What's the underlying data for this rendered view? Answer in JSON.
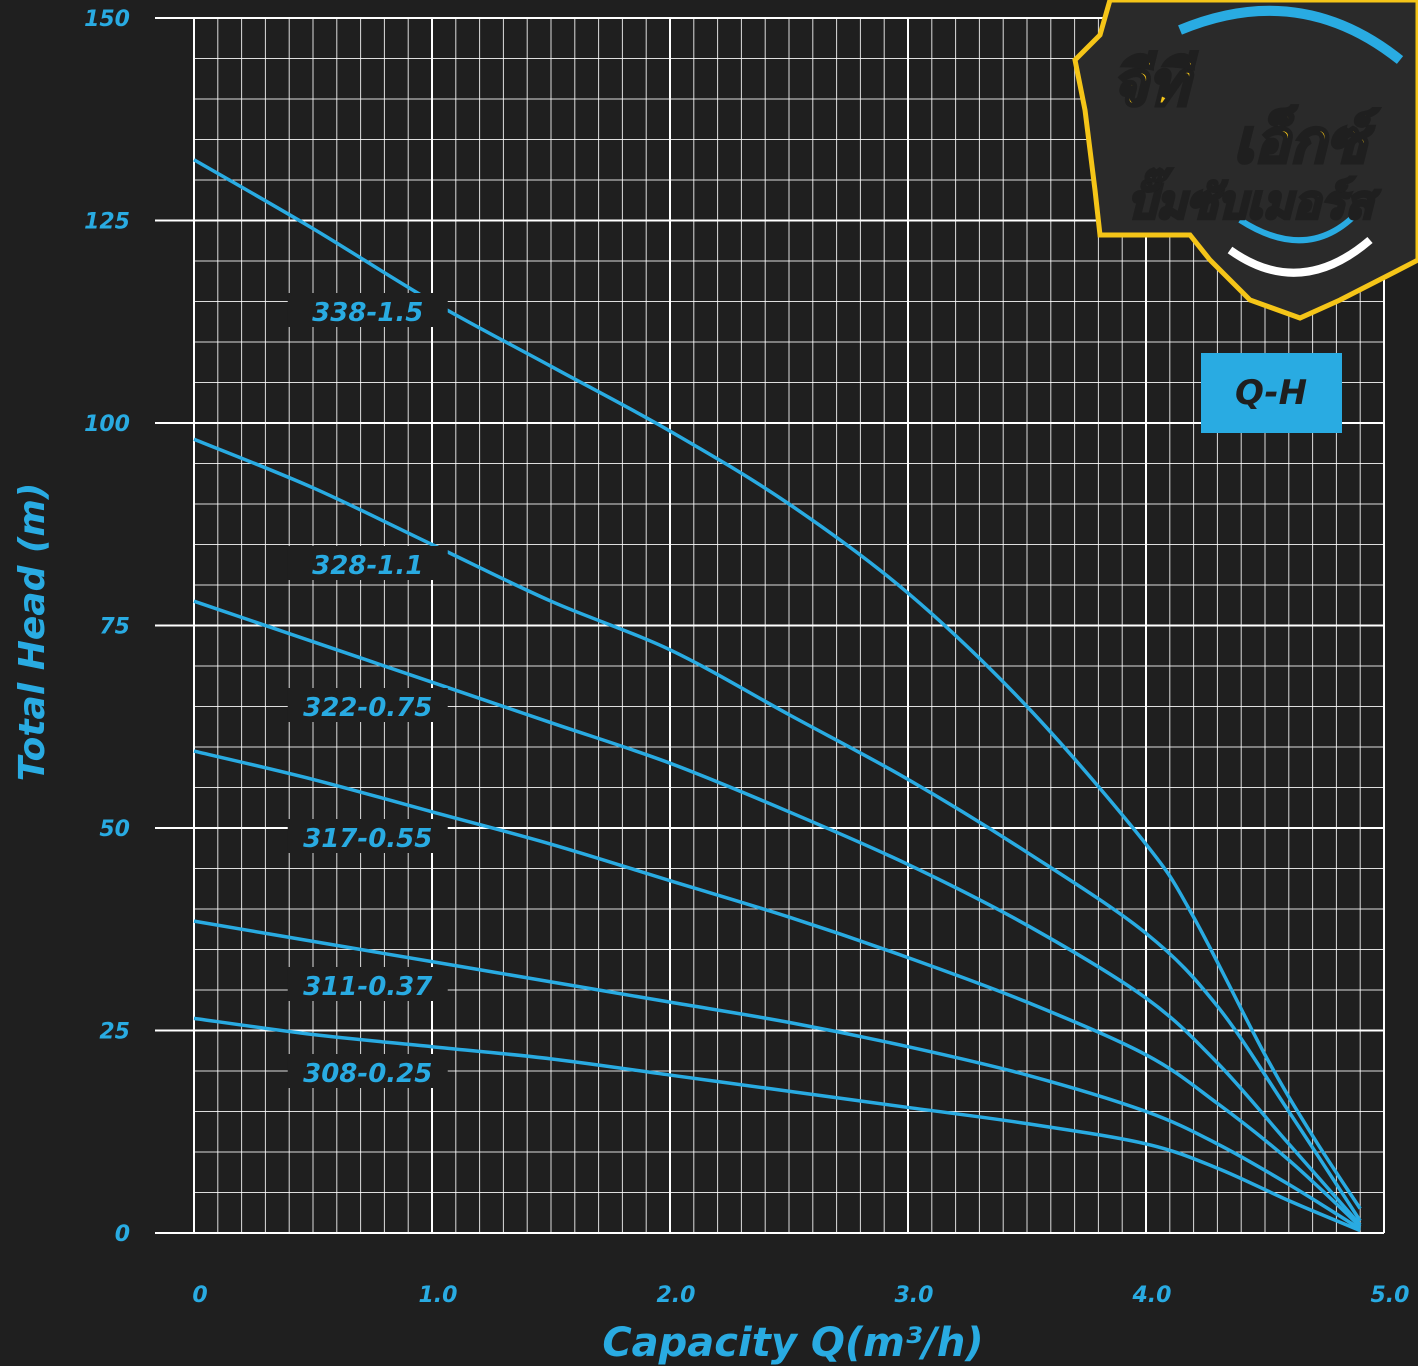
{
  "chart_data": {
    "type": "line",
    "xlabel": "Capacity Q(m³/h)",
    "ylabel": "Total Head (m)",
    "xlim": [
      0,
      5
    ],
    "ylim": [
      0,
      150
    ],
    "x_ticks": [
      "0",
      "1.0",
      "2.0",
      "3.0",
      "4.0",
      "5.0"
    ],
    "y_ticks": [
      "0",
      "25",
      "50",
      "75",
      "100",
      "125",
      "150"
    ],
    "grid": true,
    "badge": "Q-H",
    "colors": {
      "background": "#1f1f1f",
      "line": "#29abe2",
      "grid": "#ffffff",
      "badge": "#29abe2",
      "logo_gold": "#f5c518"
    },
    "series": [
      {
        "name": "338-1.5",
        "x": [
          0,
          0.5,
          1.0,
          1.5,
          2.0,
          2.5,
          3.0,
          3.5,
          4.0,
          4.2,
          4.5,
          4.7,
          4.9
        ],
        "y": [
          132.5,
          124,
          115,
          107,
          99,
          90,
          79,
          65,
          48,
          39,
          22,
          12,
          3
        ]
      },
      {
        "name": "328-1.1",
        "x": [
          0,
          0.5,
          1.0,
          1.5,
          2.0,
          2.5,
          3.0,
          3.5,
          4.0,
          4.3,
          4.6,
          4.9
        ],
        "y": [
          98,
          92,
          85,
          78,
          72,
          64,
          56,
          47,
          37,
          28,
          15,
          1.5
        ]
      },
      {
        "name": "322-0.75",
        "x": [
          0,
          0.5,
          1.0,
          1.5,
          2.0,
          2.5,
          3.0,
          3.5,
          4.0,
          4.3,
          4.6,
          4.9
        ],
        "y": [
          78,
          73,
          68,
          63,
          58,
          52,
          45.5,
          38,
          29,
          21,
          11,
          1
        ]
      },
      {
        "name": "317-0.55",
        "x": [
          0,
          0.5,
          1.0,
          1.5,
          2.0,
          2.5,
          3.0,
          3.5,
          4.0,
          4.3,
          4.6,
          4.9
        ],
        "y": [
          59.5,
          56,
          52,
          48,
          43.5,
          39,
          34,
          28.5,
          22,
          16,
          9,
          0.8
        ]
      },
      {
        "name": "311-0.37",
        "x": [
          0,
          0.5,
          1.0,
          1.5,
          2.0,
          2.5,
          3.0,
          3.5,
          4.0,
          4.3,
          4.6,
          4.9
        ],
        "y": [
          38.5,
          36,
          33.5,
          31,
          28.5,
          26,
          23,
          19.5,
          15,
          11,
          6,
          0.5
        ]
      },
      {
        "name": "308-0.25",
        "x": [
          0,
          0.5,
          1.0,
          1.5,
          2.0,
          2.5,
          3.0,
          3.5,
          4.0,
          4.3,
          4.6,
          4.9
        ],
        "y": [
          26.5,
          24.5,
          23,
          21.5,
          19.5,
          17.5,
          15.5,
          13.5,
          11,
          8,
          4,
          0.3
        ]
      }
    ]
  },
  "logo": {
    "text_line1": "จีที",
    "text_line2": "เอ็กซ์",
    "text_line3": "ปั๊มซับเมอร์ส"
  }
}
